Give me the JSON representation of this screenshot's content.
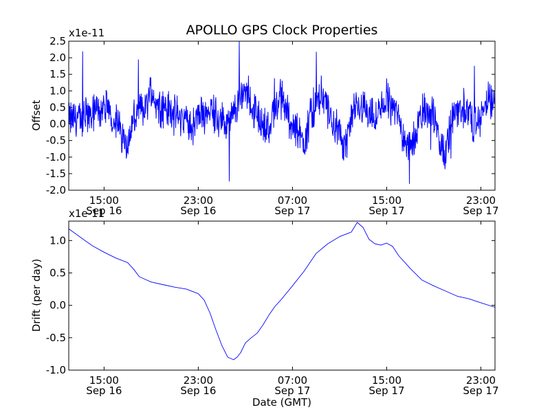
{
  "chart_data": [
    {
      "type": "line",
      "title": "APOLLO GPS Clock Properties",
      "ylabel": "Offset",
      "xlabel": "",
      "y_scale_label": "x1e-11",
      "x_unit": "hours since 2014-09-16 12:00 GMT",
      "xlim": [
        0,
        36.2
      ],
      "ylim": [
        -2.0,
        2.5
      ],
      "y_ticks": [
        -2.0,
        -1.5,
        -1.0,
        -0.5,
        0.0,
        0.5,
        1.0,
        1.5,
        2.0,
        2.5
      ],
      "y_tick_labels": [
        "-2.0",
        "-1.5",
        "-1.0",
        "-0.5",
        "0.0",
        "0.5",
        "1.0",
        "1.5",
        "2.0",
        "2.5"
      ],
      "x_ticks": [
        {
          "x": 3,
          "time": "15:00",
          "date": "Sep 16"
        },
        {
          "x": 11,
          "time": "23:00",
          "date": "Sep 16"
        },
        {
          "x": 19,
          "time": "07:00",
          "date": "Sep 17"
        },
        {
          "x": 27,
          "time": "15:00",
          "date": "Sep 17"
        },
        {
          "x": 35,
          "time": "23:00",
          "date": "Sep 17"
        }
      ],
      "series": [
        {
          "name": "Offset",
          "color": "#0000ff",
          "x": [
            0,
            0.5,
            1,
            1.5,
            2,
            2.5,
            3,
            3.5,
            4,
            4.5,
            5,
            5.5,
            6,
            6.5,
            7,
            7.5,
            8,
            8.5,
            9,
            9.5,
            10,
            10.5,
            11,
            11.5,
            12,
            12.5,
            13,
            13.5,
            14,
            14.5,
            15,
            15.5,
            16,
            16.5,
            17,
            17.5,
            18,
            18.5,
            19,
            19.5,
            20,
            20.5,
            21,
            21.5,
            22,
            22.5,
            23,
            23.5,
            24,
            24.5,
            25,
            25.5,
            26,
            26.5,
            27,
            27.5,
            28,
            28.5,
            29,
            29.5,
            30,
            30.5,
            31,
            31.5,
            32,
            32.5,
            33,
            33.5,
            34,
            34.5,
            35,
            35.5,
            36
          ],
          "y": [
            0.1,
            0.2,
            0.1,
            0.3,
            0.2,
            0.4,
            0.5,
            0.3,
            0.1,
            -0.3,
            -0.6,
            0.1,
            0.4,
            0.5,
            1.0,
            0.6,
            0.5,
            0.4,
            0.3,
            0.2,
            0.1,
            -0.1,
            0.2,
            0.3,
            0.5,
            0.3,
            0.1,
            -0.1,
            0.3,
            0.7,
            1.1,
            0.6,
            0.2,
            0.0,
            -0.2,
            0.5,
            0.8,
            0.4,
            0.0,
            -0.3,
            -0.5,
            0.2,
            0.5,
            0.9,
            0.4,
            0.0,
            -0.4,
            -0.6,
            0.1,
            0.5,
            0.6,
            0.3,
            0.1,
            0.4,
            0.8,
            0.5,
            0.2,
            -0.4,
            -0.8,
            -0.2,
            0.3,
            0.5,
            0.2,
            -0.6,
            -0.9,
            0.1,
            0.4,
            0.5,
            0.3,
            -0.1,
            0.2,
            0.7,
            0.6
          ]
        }
      ]
    },
    {
      "type": "line",
      "title": "",
      "ylabel": "Drift (per day)",
      "xlabel": "Date (GMT)",
      "y_scale_label": "x1e-11",
      "x_unit": "hours since 2014-09-16 12:00 GMT",
      "xlim": [
        0,
        36.2
      ],
      "ylim": [
        -1.0,
        1.3
      ],
      "y_ticks": [
        -1.0,
        -0.5,
        0.0,
        0.5,
        1.0
      ],
      "y_tick_labels": [
        "-1.0",
        "-0.5",
        "0.0",
        "0.5",
        "1.0"
      ],
      "x_ticks": [
        {
          "x": 3,
          "time": "15:00",
          "date": "Sep 16"
        },
        {
          "x": 11,
          "time": "23:00",
          "date": "Sep 16"
        },
        {
          "x": 19,
          "time": "07:00",
          "date": "Sep 17"
        },
        {
          "x": 27,
          "time": "15:00",
          "date": "Sep 17"
        },
        {
          "x": 35,
          "time": "23:00",
          "date": "Sep 17"
        }
      ],
      "series": [
        {
          "name": "Drift",
          "color": "#0000ff",
          "x": [
            0,
            1,
            2,
            3,
            4,
            5,
            5.5,
            6,
            6.5,
            7,
            8,
            9,
            10,
            11,
            11.5,
            12,
            12.5,
            13,
            13.5,
            14,
            14.3,
            14.6,
            15,
            15.5,
            16,
            16.5,
            17,
            17.5,
            18,
            19,
            20,
            21,
            22,
            23,
            24,
            24.5,
            25,
            25.5,
            26,
            26.5,
            27,
            27.5,
            28,
            29,
            30,
            31,
            32,
            33,
            34,
            35,
            36.2
          ],
          "y": [
            1.18,
            1.05,
            0.92,
            0.82,
            0.73,
            0.66,
            0.56,
            0.44,
            0.4,
            0.36,
            0.32,
            0.28,
            0.25,
            0.18,
            0.08,
            -0.12,
            -0.38,
            -0.62,
            -0.8,
            -0.84,
            -0.8,
            -0.73,
            -0.58,
            -0.5,
            -0.43,
            -0.3,
            -0.15,
            -0.02,
            0.08,
            0.3,
            0.53,
            0.8,
            0.95,
            1.06,
            1.13,
            1.28,
            1.2,
            1.02,
            0.95,
            0.93,
            0.96,
            0.91,
            0.77,
            0.57,
            0.39,
            0.3,
            0.22,
            0.14,
            0.1,
            0.04,
            -0.03
          ]
        }
      ]
    }
  ]
}
